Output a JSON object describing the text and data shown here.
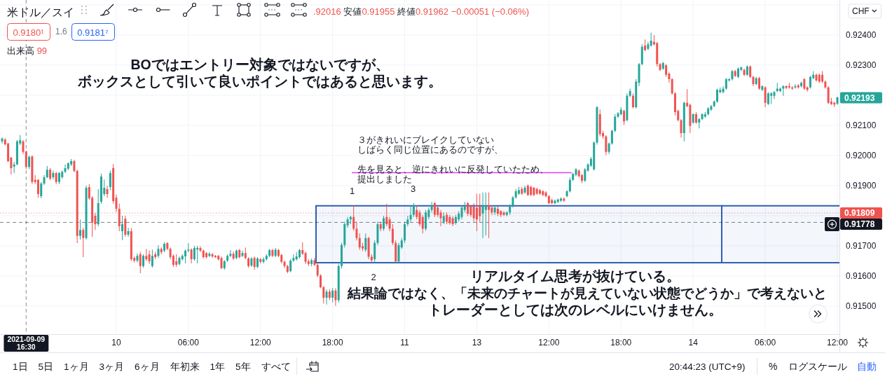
{
  "chart_data": {
    "type": "candlestick",
    "title": "米ドル／スイ",
    "subtitle": ".92016 安値0.91955 終値0.91962 −0.00051 (−0.06%)",
    "ylabel": "CHF",
    "categories": [
      null,
      null,
      null,
      null,
      null,
      null,
      null,
      null,
      "2021-09-09 16:30",
      null,
      null,
      null,
      null,
      null,
      null,
      null,
      null,
      null,
      null,
      null,
      null,
      null,
      null,
      null,
      null,
      null,
      null,
      null,
      null,
      null,
      null,
      null,
      null,
      null,
      null,
      null,
      null,
      null,
      "10",
      null,
      null,
      null,
      null,
      null,
      null,
      null,
      null,
      null,
      null,
      null,
      null,
      null,
      null,
      null,
      null,
      null,
      null,
      null,
      null,
      null,
      null,
      null,
      "06:00",
      null,
      null,
      null,
      null,
      null,
      null,
      null,
      null,
      null,
      null,
      null,
      null,
      null,
      null,
      null,
      null,
      null,
      null,
      null,
      null,
      null,
      null,
      null,
      "12:00",
      null,
      null,
      null,
      null,
      null,
      null,
      null,
      null,
      null,
      null,
      null,
      null,
      null,
      null,
      null,
      null,
      null,
      null,
      null,
      null,
      null,
      null,
      null,
      "18:00",
      null,
      null,
      null,
      null,
      null,
      null,
      null,
      null,
      null,
      null,
      null,
      null,
      null,
      null,
      null,
      null,
      null,
      null,
      null,
      null,
      null,
      null,
      null,
      "11",
      null,
      null,
      null,
      null,
      null,
      null,
      null,
      null,
      null,
      null,
      null,
      null,
      null,
      null,
      null,
      null,
      null,
      null,
      null,
      null,
      null,
      null,
      null,
      "13",
      null,
      null,
      null,
      null,
      null,
      null,
      null,
      null,
      null,
      null,
      null,
      null,
      null,
      null,
      null,
      null,
      null,
      null,
      null,
      null,
      null,
      null,
      null,
      "12:00",
      null,
      null,
      null,
      null,
      null,
      null,
      null,
      null,
      null,
      null,
      null,
      null,
      null,
      null,
      null,
      null,
      null,
      null,
      null,
      null,
      null,
      null,
      null,
      "18:00",
      null,
      null,
      null,
      null,
      null,
      null,
      null,
      null,
      null,
      null,
      null,
      null,
      null,
      null,
      null,
      null,
      null,
      null,
      null,
      null,
      null,
      null,
      null,
      "14",
      null,
      null,
      null,
      null,
      null,
      null,
      null,
      null,
      null,
      null,
      null,
      null,
      null,
      null,
      null,
      null,
      null,
      null,
      null,
      null,
      null,
      null,
      null,
      "06:00",
      null,
      null,
      null,
      null,
      null,
      null,
      null,
      null,
      null,
      null,
      null,
      null,
      null,
      null,
      null,
      null,
      null,
      null,
      null,
      null,
      null,
      null,
      null,
      "12:00"
    ],
    "ylim": [
      0.91407,
      0.92516
    ],
    "yticks": [
      {
        "value": 0.925,
        "label": null
      },
      {
        "value": 0.924,
        "label": "0.92400"
      },
      {
        "value": 0.923,
        "label": "0.92300"
      },
      {
        "value": 0.922,
        "label": null
      },
      {
        "value": 0.921,
        "label": "0.92100"
      },
      {
        "value": 0.92,
        "label": "0.92000"
      },
      {
        "value": 0.919,
        "label": "0.91900"
      },
      {
        "value": 0.918,
        "label": null
      },
      {
        "value": 0.917,
        "label": "0.91700"
      },
      {
        "value": 0.916,
        "label": "0.91600"
      },
      {
        "value": 0.915,
        "label": "0.91500"
      }
    ],
    "grid": true,
    "ohlc": [
      [
        0.92047,
        0.9206,
        0.9204,
        0.92056
      ],
      [
        0.92053,
        0.92058,
        0.92033,
        0.92037
      ],
      [
        0.9204,
        0.92042,
        0.91978,
        0.91981
      ],
      [
        0.91993,
        0.91995,
        0.91937,
        0.91958
      ],
      [
        0.91963,
        0.91979,
        0.91942,
        0.9197
      ],
      [
        0.9197,
        0.92051,
        0.91968,
        0.92047
      ],
      [
        0.9204,
        0.92068,
        0.92035,
        0.92051
      ],
      [
        0.92047,
        0.92051,
        0.92005,
        0.92012
      ],
      [
        0.92013,
        0.92016,
        0.91955,
        0.91962
      ],
      [
        0.91962,
        0.92,
        0.91955,
        0.91995
      ],
      [
        0.91997,
        0.92,
        0.91905,
        0.91912
      ],
      [
        0.91919,
        0.91935,
        0.91905,
        0.91912
      ],
      [
        0.91919,
        0.91922,
        0.9186,
        0.91872
      ],
      [
        0.91865,
        0.91912,
        0.91858,
        0.91907
      ],
      [
        0.91907,
        0.91935,
        0.91902,
        0.91928
      ],
      [
        0.91928,
        0.91965,
        0.91925,
        0.91953
      ],
      [
        0.91953,
        0.91958,
        0.91918,
        0.91923
      ],
      [
        0.91928,
        0.9195,
        0.9192,
        0.91942
      ],
      [
        0.91942,
        0.91946,
        0.91905,
        0.91912
      ],
      [
        0.91912,
        0.91946,
        0.91905,
        0.91942
      ],
      [
        0.91928,
        0.9195,
        0.91923,
        0.91946
      ],
      [
        0.91946,
        0.9197,
        0.91942,
        0.91958
      ],
      [
        0.91956,
        0.91977,
        0.91951,
        0.91974
      ],
      [
        0.9197,
        0.91988,
        0.91965,
        0.91981
      ],
      [
        0.91981,
        0.91986,
        0.91944,
        0.91949
      ],
      [
        0.91949,
        0.91953,
        0.91709,
        0.91733
      ],
      [
        0.91733,
        0.91788,
        0.91721,
        0.91753
      ],
      [
        0.91753,
        0.9176,
        0.91663,
        0.91726
      ],
      [
        0.91726,
        0.919,
        0.91721,
        0.91893
      ],
      [
        0.91895,
        0.91905,
        0.91853,
        0.91858
      ],
      [
        0.9186,
        0.91865,
        0.9173,
        0.91777
      ],
      [
        0.918,
        0.9181,
        0.91753,
        0.91772
      ],
      [
        0.91772,
        0.91888,
        0.91765,
        0.91842
      ],
      [
        0.91847,
        0.9194,
        0.9184,
        0.9193
      ],
      [
        0.91872,
        0.9192,
        0.91865,
        0.91893
      ],
      [
        0.91888,
        0.919,
        0.9186,
        0.91872
      ],
      [
        0.91895,
        0.9195,
        0.91885,
        0.91942
      ],
      [
        0.91958,
        0.91972,
        0.9184,
        0.91849
      ],
      [
        0.9186,
        0.9187,
        0.91812,
        0.91823
      ],
      [
        0.91823,
        0.9184,
        0.91749,
        0.91765
      ],
      [
        0.91749,
        0.918,
        0.91719,
        0.91772
      ],
      [
        0.9179,
        0.918,
        0.9173,
        0.91737
      ],
      [
        0.91737,
        0.9176,
        0.9173,
        0.91749
      ],
      [
        0.91749,
        0.9176,
        0.9165,
        0.91656
      ],
      [
        0.9166,
        0.91665,
        0.91645,
        0.91651
      ],
      [
        0.91651,
        0.91675,
        0.91645,
        0.91667
      ],
      [
        0.91672,
        0.9168,
        0.91609,
        0.91633
      ],
      [
        0.91633,
        0.91672,
        0.91628,
        0.91667
      ],
      [
        0.91667,
        0.9169,
        0.9165,
        0.91656
      ],
      [
        0.91672,
        0.91685,
        0.9164,
        0.91649
      ],
      [
        0.91633,
        0.91688,
        0.91628,
        0.91667
      ],
      [
        0.91672,
        0.9168,
        0.91656,
        0.91663
      ],
      [
        0.91667,
        0.91702,
        0.9166,
        0.9169
      ],
      [
        0.9169,
        0.91695,
        0.91672,
        0.91679
      ],
      [
        0.91684,
        0.91712,
        0.91679,
        0.91707
      ],
      [
        0.91709,
        0.91712,
        0.91686,
        0.9169
      ],
      [
        0.9169,
        0.91695,
        0.91656,
        0.91663
      ],
      [
        0.91667,
        0.91672,
        0.9163,
        0.91637
      ],
      [
        0.91649,
        0.91672,
        0.9163,
        0.91637
      ],
      [
        0.9164,
        0.91665,
        0.91635,
        0.9166
      ],
      [
        0.91656,
        0.91672,
        0.91651,
        0.91667
      ],
      [
        0.91665,
        0.91688,
        0.91642,
        0.91684
      ],
      [
        0.91684,
        0.91709,
        0.91679,
        0.91688
      ],
      [
        0.91688,
        0.91692,
        0.91642,
        0.91656
      ],
      [
        0.91656,
        0.917,
        0.91651,
        0.91693
      ],
      [
        0.91688,
        0.917,
        0.91642,
        0.91693
      ],
      [
        0.91693,
        0.91698,
        0.91679,
        0.91684
      ],
      [
        0.91684,
        0.91688,
        0.91658,
        0.91663
      ],
      [
        0.91676,
        0.91679,
        0.91658,
        0.91663
      ],
      [
        0.91667,
        0.91679,
        0.91663,
        0.91674
      ],
      [
        0.91672,
        0.91676,
        0.9166,
        0.91665
      ],
      [
        0.91667,
        0.9167,
        0.9166,
        0.91663
      ],
      [
        0.91667,
        0.9167,
        0.91651,
        0.91656
      ],
      [
        0.9166,
        0.91665,
        0.91623,
        0.91626
      ],
      [
        0.91626,
        0.91653,
        0.91621,
        0.91649
      ],
      [
        0.91651,
        0.91672,
        0.91647,
        0.91667
      ],
      [
        0.91667,
        0.91686,
        0.91663,
        0.91674
      ],
      [
        0.91674,
        0.91681,
        0.91653,
        0.91658
      ],
      [
        0.9166,
        0.91688,
        0.91656,
        0.91684
      ],
      [
        0.91686,
        0.9169,
        0.91658,
        0.91663
      ],
      [
        0.91667,
        0.91684,
        0.91663,
        0.91676
      ],
      [
        0.91676,
        0.91695,
        0.91656,
        0.9166
      ],
      [
        0.91658,
        0.91663,
        0.91628,
        0.91633
      ],
      [
        0.91635,
        0.91663,
        0.9163,
        0.91658
      ],
      [
        0.9166,
        0.91665,
        0.91621,
        0.9163
      ],
      [
        0.9163,
        0.91663,
        0.91626,
        0.91658
      ],
      [
        0.91656,
        0.9166,
        0.91642,
        0.91647
      ],
      [
        0.91647,
        0.91663,
        0.91642,
        0.91656
      ],
      [
        0.91656,
        0.91672,
        0.91651,
        0.91667
      ],
      [
        0.91667,
        0.9169,
        0.91663,
        0.91686
      ],
      [
        0.91686,
        0.9169,
        0.91663,
        0.91667
      ],
      [
        0.91667,
        0.91693,
        0.91663,
        0.91688
      ],
      [
        0.91686,
        0.9169,
        0.91663,
        0.91667
      ],
      [
        0.9167,
        0.91674,
        0.91642,
        0.91647
      ],
      [
        0.91647,
        0.91651,
        0.91626,
        0.91633
      ],
      [
        0.91633,
        0.91637,
        0.91609,
        0.91614
      ],
      [
        0.91616,
        0.91656,
        0.91612,
        0.91651
      ],
      [
        0.91651,
        0.91672,
        0.91647,
        0.9166
      ],
      [
        0.91656,
        0.91679,
        0.91651,
        0.91665
      ],
      [
        0.91663,
        0.9169,
        0.91658,
        0.91686
      ],
      [
        0.91686,
        0.91712,
        0.9167,
        0.91674
      ],
      [
        0.91676,
        0.91681,
        0.9164,
        0.91647
      ],
      [
        0.91649,
        0.91656,
        0.91633,
        0.9164
      ],
      [
        0.9164,
        0.91658,
        0.91632,
        0.91652
      ],
      [
        0.91652,
        0.9166,
        0.91633,
        0.91637
      ],
      [
        0.91637,
        0.91644,
        0.91596,
        0.91602
      ],
      [
        0.91602,
        0.91606,
        0.91559,
        0.91563
      ],
      [
        0.91563,
        0.91567,
        0.91509,
        0.91528
      ],
      [
        0.91528,
        0.91555,
        0.91505,
        0.91548
      ],
      [
        0.91548,
        0.91556,
        0.9152,
        0.91528
      ],
      [
        0.91528,
        0.9156,
        0.91512,
        0.91552
      ],
      [
        0.91552,
        0.91559,
        0.91501,
        0.9152
      ],
      [
        0.9152,
        0.9164,
        0.91512,
        0.91633
      ],
      [
        0.91633,
        0.9171,
        0.91625,
        0.91703
      ],
      [
        0.91703,
        0.9178,
        0.91695,
        0.91772
      ],
      [
        0.91768,
        0.91796,
        0.9176,
        0.91788
      ],
      [
        0.91788,
        0.918,
        0.91772,
        0.91796
      ],
      [
        0.91796,
        0.91834,
        0.9175,
        0.91757
      ],
      [
        0.91757,
        0.9178,
        0.91718,
        0.91726
      ],
      [
        0.91726,
        0.91741,
        0.91687,
        0.91695
      ],
      [
        0.91699,
        0.9171,
        0.91683,
        0.91691
      ],
      [
        0.91687,
        0.91741,
        0.9168,
        0.91726
      ],
      [
        0.91726,
        0.9173,
        0.91656,
        0.91664
      ],
      [
        0.91664,
        0.91672,
        0.91644,
        0.91652
      ],
      [
        0.91656,
        0.91718,
        0.91644,
        0.9171
      ],
      [
        0.9171,
        0.9178,
        0.91703,
        0.91772
      ],
      [
        0.91772,
        0.9178,
        0.91749,
        0.91757
      ],
      [
        0.91757,
        0.918,
        0.9175,
        0.91792
      ],
      [
        0.91796,
        0.9184,
        0.91765,
        0.91772
      ],
      [
        0.91788,
        0.91796,
        0.91749,
        0.91757
      ],
      [
        0.91757,
        0.91772,
        0.91703,
        0.9171
      ],
      [
        0.9171,
        0.91718,
        0.91644,
        0.91648
      ],
      [
        0.91648,
        0.9171,
        0.91644,
        0.91703
      ],
      [
        0.91695,
        0.91726,
        0.9169,
        0.91718
      ],
      [
        0.91718,
        0.9178,
        0.9171,
        0.91772
      ],
      [
        0.91772,
        0.918,
        0.91765,
        0.91788
      ],
      [
        0.91788,
        0.91834,
        0.9178,
        0.91803
      ],
      [
        0.91803,
        0.91842,
        0.91796,
        0.91834
      ],
      [
        0.91819,
        0.91834,
        0.91788,
        0.91796
      ],
      [
        0.91811,
        0.91819,
        0.91765,
        0.91772
      ],
      [
        0.91796,
        0.91803,
        0.91741,
        0.91757
      ],
      [
        0.91757,
        0.91819,
        0.9175,
        0.91811
      ],
      [
        0.91796,
        0.91827,
        0.91788,
        0.91819
      ],
      [
        0.91819,
        0.91846,
        0.91811,
        0.91834
      ],
      [
        0.91842,
        0.91846,
        0.91796,
        0.91803
      ],
      [
        0.91827,
        0.91834,
        0.91796,
        0.91803
      ],
      [
        0.91811,
        0.91819,
        0.91765,
        0.91792
      ],
      [
        0.9178,
        0.91811,
        0.91772,
        0.91799
      ],
      [
        0.91803,
        0.91811,
        0.91772,
        0.9178
      ],
      [
        0.91796,
        0.91803,
        0.9177,
        0.91776
      ],
      [
        0.91792,
        0.91799,
        0.91765,
        0.91772
      ],
      [
        0.91776,
        0.91803,
        0.9177,
        0.91796
      ],
      [
        0.91788,
        0.91815,
        0.9178,
        0.91807
      ],
      [
        0.91796,
        0.91834,
        0.91788,
        0.91827
      ],
      [
        0.91819,
        0.91846,
        0.91811,
        0.9183
      ],
      [
        0.91842,
        0.91846,
        0.91799,
        0.91807
      ],
      [
        0.9183,
        0.91834,
        0.91796,
        0.91803
      ],
      [
        0.9183,
        0.91842,
        0.9178,
        0.91792
      ],
      [
        0.91827,
        0.91873,
        0.91749,
        0.91788
      ],
      [
        0.9183,
        0.91873,
        0.9178,
        0.91799
      ],
      [
        0.91807,
        0.91877,
        0.91726,
        0.91834
      ],
      [
        0.91819,
        0.91877,
        0.91734,
        0.91834
      ],
      [
        0.91834,
        0.91877,
        0.91726,
        0.91819
      ],
      [
        0.91827,
        0.91834,
        0.91803,
        0.91811
      ],
      [
        0.91811,
        0.91834,
        0.91803,
        0.91827
      ],
      [
        0.91823,
        0.9183,
        0.91799,
        0.91807
      ],
      [
        0.91815,
        0.91819,
        0.91796,
        0.91803
      ],
      [
        0.91811,
        0.91815,
        0.91799,
        0.91803
      ],
      [
        0.91803,
        0.91815,
        0.91799,
        0.91811
      ],
      [
        0.91811,
        0.91838,
        0.91803,
        0.91834
      ],
      [
        0.91834,
        0.91865,
        0.91827,
        0.91861
      ],
      [
        0.91861,
        0.91889,
        0.91857,
        0.91881
      ],
      [
        0.91873,
        0.91896,
        0.91869,
        0.91885
      ],
      [
        0.91889,
        0.91896,
        0.91869,
        0.91873
      ],
      [
        0.91877,
        0.919,
        0.91873,
        0.91893
      ],
      [
        0.919,
        0.91904,
        0.91865,
        0.91869
      ],
      [
        0.91896,
        0.919,
        0.91865,
        0.91869
      ],
      [
        0.91893,
        0.91896,
        0.91865,
        0.91869
      ],
      [
        0.91889,
        0.91893,
        0.91869,
        0.91873
      ],
      [
        0.91885,
        0.91889,
        0.91869,
        0.91873
      ],
      [
        0.91881,
        0.91885,
        0.91865,
        0.91869
      ],
      [
        0.91877,
        0.91881,
        0.91861,
        0.91865
      ],
      [
        0.91865,
        0.91869,
        0.91838,
        0.91842
      ],
      [
        0.91852,
        0.91857,
        0.91838,
        0.91842
      ],
      [
        0.91842,
        0.91854,
        0.91838,
        0.9185
      ],
      [
        0.91846,
        0.91857,
        0.91842,
        0.91854
      ],
      [
        0.9185,
        0.91861,
        0.91846,
        0.91857
      ],
      [
        0.91857,
        0.91861,
        0.91846,
        0.9185
      ],
      [
        0.91865,
        0.91885,
        0.91861,
        0.91881
      ],
      [
        0.91881,
        0.91927,
        0.91877,
        0.91919
      ],
      [
        0.91919,
        0.91943,
        0.91915,
        0.91939
      ],
      [
        0.91936,
        0.91958,
        0.91931,
        0.91954
      ],
      [
        0.9195,
        0.91954,
        0.91927,
        0.91931
      ],
      [
        0.91935,
        0.91939,
        0.91908,
        0.91916
      ],
      [
        0.91916,
        0.91958,
        0.91912,
        0.91954
      ],
      [
        0.9195,
        0.91974,
        0.91946,
        0.9197
      ],
      [
        0.91966,
        0.91995,
        0.91962,
        0.91989
      ],
      [
        0.91954,
        0.92047,
        0.9195,
        0.92043
      ],
      [
        0.92043,
        0.92164,
        0.92036,
        0.9216
      ],
      [
        0.92137,
        0.92153,
        0.92063,
        0.92071
      ],
      [
        0.92074,
        0.92082,
        0.92055,
        0.92063
      ],
      [
        0.92063,
        0.92067,
        0.92001,
        0.92012
      ],
      [
        0.92012,
        0.92043,
        0.92005,
        0.9204
      ],
      [
        0.9204,
        0.92086,
        0.92036,
        0.92082
      ],
      [
        0.92082,
        0.92137,
        0.92078,
        0.92129
      ],
      [
        0.92129,
        0.92144,
        0.92125,
        0.9214
      ],
      [
        0.92137,
        0.9216,
        0.92133,
        0.92152
      ],
      [
        0.92148,
        0.92152,
        0.92101,
        0.92113
      ],
      [
        0.92117,
        0.92206,
        0.92113,
        0.92198
      ],
      [
        0.92198,
        0.92222,
        0.92194,
        0.92214
      ],
      [
        0.92198,
        0.92206,
        0.92156,
        0.9216
      ],
      [
        0.9216,
        0.92253,
        0.92156,
        0.92245
      ],
      [
        0.92241,
        0.92307,
        0.9223,
        0.92303
      ],
      [
        0.92303,
        0.92369,
        0.92299,
        0.92361
      ],
      [
        0.92365,
        0.92385,
        0.92346,
        0.9235
      ],
      [
        0.92354,
        0.92377,
        0.9235,
        0.92369
      ],
      [
        0.92365,
        0.92408,
        0.92361,
        0.92381
      ],
      [
        0.92377,
        0.924,
        0.92365,
        0.92369
      ],
      [
        0.92373,
        0.92377,
        0.92295,
        0.92303
      ],
      [
        0.92303,
        0.92307,
        0.9228,
        0.92284
      ],
      [
        0.92288,
        0.92311,
        0.92284,
        0.92307
      ],
      [
        0.92299,
        0.92303,
        0.92261,
        0.92268
      ],
      [
        0.92272,
        0.92276,
        0.92241,
        0.92253
      ],
      [
        0.92253,
        0.92257,
        0.92202,
        0.92206
      ],
      [
        0.92206,
        0.9221,
        0.92133,
        0.92144
      ],
      [
        0.92148,
        0.92152,
        0.92113,
        0.92117
      ],
      [
        0.92117,
        0.92121,
        0.92059,
        0.92074
      ],
      [
        0.92074,
        0.92179,
        0.92047,
        0.92175
      ],
      [
        0.92175,
        0.9222,
        0.9216,
        0.92164
      ],
      [
        0.92168,
        0.92172,
        0.92074,
        0.92098
      ],
      [
        0.92109,
        0.9214,
        0.92105,
        0.92137
      ],
      [
        0.92137,
        0.92144,
        0.92105,
        0.92109
      ],
      [
        0.92109,
        0.92125,
        0.9209,
        0.92121
      ],
      [
        0.92121,
        0.9214,
        0.92117,
        0.92137
      ],
      [
        0.92129,
        0.92144,
        0.92125,
        0.92137
      ],
      [
        0.92137,
        0.9216,
        0.92133,
        0.92156
      ],
      [
        0.92152,
        0.92168,
        0.92148,
        0.92164
      ],
      [
        0.92164,
        0.92183,
        0.9216,
        0.92179
      ],
      [
        0.92179,
        0.92222,
        0.92175,
        0.92218
      ],
      [
        0.9221,
        0.92226,
        0.92206,
        0.92218
      ],
      [
        0.9221,
        0.9223,
        0.92206,
        0.92222
      ],
      [
        0.92222,
        0.92257,
        0.92218,
        0.92253
      ],
      [
        0.92249,
        0.92257,
        0.92245,
        0.92253
      ],
      [
        0.92253,
        0.92284,
        0.92249,
        0.9228
      ],
      [
        0.9228,
        0.92284,
        0.92261,
        0.92264
      ],
      [
        0.92261,
        0.92292,
        0.92257,
        0.92288
      ],
      [
        0.92284,
        0.92295,
        0.9228,
        0.92292
      ],
      [
        0.92284,
        0.92288,
        0.92264,
        0.92268
      ],
      [
        0.92268,
        0.92299,
        0.92264,
        0.92295
      ],
      [
        0.92295,
        0.92299,
        0.92257,
        0.92261
      ],
      [
        0.92261,
        0.92264,
        0.9223,
        0.92237
      ],
      [
        0.92237,
        0.92261,
        0.92233,
        0.92257
      ],
      [
        0.92257,
        0.92261,
        0.92218,
        0.92222
      ],
      [
        0.92218,
        0.92233,
        0.92214,
        0.9223
      ],
      [
        0.92226,
        0.9223,
        0.9216,
        0.92175
      ],
      [
        0.92171,
        0.9221,
        0.92168,
        0.92206
      ],
      [
        0.92198,
        0.9221,
        0.92171,
        0.92206
      ],
      [
        0.92198,
        0.92214,
        0.92187,
        0.9221
      ],
      [
        0.92214,
        0.92241,
        0.9221,
        0.92222
      ],
      [
        0.92214,
        0.92226,
        0.9221,
        0.92222
      ],
      [
        0.92222,
        0.92233,
        0.92198,
        0.9223
      ],
      [
        0.9223,
        0.92233,
        0.9222,
        0.92224
      ],
      [
        0.9223,
        0.92241,
        0.92222,
        0.92226
      ],
      [
        0.92226,
        0.9223,
        0.92218,
        0.92222
      ],
      [
        0.92226,
        0.92237,
        0.92222,
        0.9223
      ],
      [
        0.92233,
        0.92237,
        0.92222,
        0.92226
      ],
      [
        0.9223,
        0.92245,
        0.92226,
        0.92241
      ],
      [
        0.92253,
        0.92257,
        0.92218,
        0.92222
      ],
      [
        0.92226,
        0.9223,
        0.92212,
        0.92218
      ],
      [
        0.92226,
        0.92264,
        0.92222,
        0.92261
      ],
      [
        0.92257,
        0.9228,
        0.92253,
        0.92268
      ],
      [
        0.92268,
        0.92272,
        0.92245,
        0.92249
      ],
      [
        0.92268,
        0.92272,
        0.92241,
        0.92245
      ],
      [
        0.92268,
        0.9228,
        0.92241,
        0.92245
      ],
      [
        0.92245,
        0.92249,
        0.92222,
        0.92226
      ],
      [
        0.92226,
        0.9223,
        0.92171,
        0.92175
      ],
      [
        0.92179,
        0.92191,
        0.92168,
        0.92171
      ],
      [
        0.92175,
        0.92179,
        0.9216,
        0.92169
      ],
      [
        0.92172,
        0.92195,
        0.92168,
        0.92193
      ]
    ],
    "colors": [
      "#26a69a",
      "#ef5350",
      "#ef5350",
      "#ef5350",
      "#26a69a",
      "#26a69a",
      "#26a69a",
      "#ef5350",
      "#ef5350",
      "#26a69a",
      "#ef5350",
      "#ef5350",
      "#ef5350",
      "#26a69a",
      "#26a69a",
      "#26a69a",
      "#ef5350",
      "#26a69a",
      "#ef5350",
      "#26a69a",
      "#26a69a",
      "#26a69a",
      "#26a69a",
      "#26a69a",
      "#ef5350",
      "#ef5350",
      "#26a69a",
      "#ef5350",
      "#26a69a",
      "#ef5350",
      "#ef5350",
      "#ef5350",
      "#26a69a",
      "#26a69a",
      "#26a69a",
      "#ef5350",
      "#26a69a",
      "#ef5350",
      "#ef5350",
      "#ef5350",
      "#26a69a",
      "#ef5350",
      "#26a69a",
      "#ef5350",
      "#ef5350",
      "#26a69a",
      "#ef5350",
      "#26a69a",
      "#ef5350",
      "#ef5350",
      "#26a69a",
      "#ef5350",
      "#26a69a",
      "#ef5350",
      "#26a69a",
      "#ef5350",
      "#ef5350",
      "#ef5350",
      "#ef5350",
      "#26a69a",
      "#26a69a",
      "#26a69a",
      "#26a69a",
      "#ef5350",
      "#26a69a",
      "#26a69a",
      "#ef5350",
      "#ef5350",
      "#ef5350",
      "#26a69a",
      "#ef5350",
      "#ef5350",
      "#ef5350",
      "#ef5350",
      "#26a69a",
      "#26a69a",
      "#26a69a",
      "#ef5350",
      "#26a69a",
      "#ef5350",
      "#26a69a",
      "#ef5350",
      "#ef5350",
      "#26a69a",
      "#ef5350",
      "#26a69a",
      "#ef5350",
      "#26a69a",
      "#26a69a",
      "#26a69a",
      "#ef5350",
      "#26a69a",
      "#ef5350",
      "#ef5350",
      "#ef5350",
      "#ef5350",
      "#26a69a",
      "#26a69a",
      "#26a69a",
      "#26a69a",
      "#ef5350",
      "#ef5350",
      "#ef5350",
      "#26a69a",
      "#ef5350",
      "#ef5350",
      "#ef5350",
      "#ef5350",
      "#26a69a",
      "#ef5350",
      "#26a69a",
      "#ef5350",
      "#26a69a",
      "#26a69a",
      "#26a69a",
      "#26a69a",
      "#26a69a",
      "#ef5350",
      "#ef5350",
      "#ef5350",
      "#ef5350",
      "#26a69a",
      "#ef5350",
      "#ef5350",
      "#26a69a",
      "#26a69a",
      "#ef5350",
      "#26a69a",
      "#ef5350",
      "#ef5350",
      "#ef5350",
      "#ef5350",
      "#26a69a",
      "#26a69a",
      "#26a69a",
      "#26a69a",
      "#26a69a",
      "#26a69a",
      "#ef5350",
      "#ef5350",
      "#ef5350",
      "#26a69a",
      "#26a69a",
      "#26a69a",
      "#ef5350",
      "#ef5350",
      "#ef5350",
      "#26a69a",
      "#ef5350",
      "#ef5350",
      "#ef5350",
      "#26a69a",
      "#26a69a",
      "#26a69a",
      "#26a69a",
      "#ef5350",
      "#ef5350",
      "#ef5350",
      "#ef5350",
      "#ef5350",
      "#26a69a",
      "#26a69a",
      "#ef5350",
      "#ef5350",
      "#26a69a",
      "#ef5350",
      "#ef5350",
      "#ef5350",
      "#26a69a",
      "#26a69a",
      "#26a69a",
      "#26a69a",
      "#26a69a",
      "#ef5350",
      "#26a69a",
      "#ef5350",
      "#ef5350",
      "#ef5350",
      "#ef5350",
      "#ef5350",
      "#ef5350",
      "#ef5350",
      "#ef5350",
      "#ef5350",
      "#26a69a",
      "#26a69a",
      "#26a69a",
      "#ef5350",
      "#26a69a",
      "#26a69a",
      "#26a69a",
      "#26a69a",
      "#ef5350",
      "#ef5350",
      "#26a69a",
      "#26a69a",
      "#26a69a",
      "#26a69a",
      "#26a69a",
      "#ef5350",
      "#ef5350",
      "#ef5350",
      "#26a69a",
      "#26a69a",
      "#26a69a",
      "#26a69a",
      "#26a69a",
      "#ef5350",
      "#26a69a",
      "#26a69a",
      "#ef5350",
      "#26a69a",
      "#26a69a",
      "#26a69a",
      "#ef5350",
      "#26a69a",
      "#26a69a",
      "#ef5350",
      "#ef5350",
      "#ef5350",
      "#26a69a",
      "#ef5350",
      "#ef5350",
      "#ef5350",
      "#ef5350",
      "#ef5350",
      "#ef5350",
      "#26a69a",
      "#ef5350",
      "#ef5350",
      "#26a69a",
      "#ef5350",
      "#26a69a",
      "#26a69a",
      "#26a69a",
      "#26a69a",
      "#26a69a",
      "#26a69a",
      "#26a69a",
      "#26a69a",
      "#26a69a",
      "#26a69a",
      "#26a69a",
      "#26a69a",
      "#ef5350",
      "#26a69a",
      "#26a69a",
      "#ef5350",
      "#26a69a",
      "#ef5350",
      "#ef5350",
      "#26a69a",
      "#ef5350",
      "#26a69a",
      "#ef5350",
      "#26a69a",
      "#26a69a",
      "#26a69a",
      "#26a69a",
      "#26a69a",
      "#26a69a",
      "#ef5350",
      "#ef5350",
      "#ef5350",
      "#26a69a",
      "#ef5350",
      "#26a69a",
      "#ef5350",
      "#ef5350",
      "#26a69a",
      "#26a69a",
      "#ef5350",
      "#ef5350",
      "#ef5350",
      "#ef5350",
      "#ef5350",
      "#ef5350",
      "#ef5350",
      "#26a69a"
    ],
    "bands": [
      {
        "axis": "y",
        "from": 0.91644,
        "to": 0.91833,
        "color": "#2f5fb3"
      },
      {
        "axis": "y",
        "from": 0.91644,
        "to": 0.91833,
        "color": "#2f5fb3"
      }
    ],
    "ref_lines": [
      {
        "axis": "y",
        "value": 0.91943,
        "color": "#e040fb",
        "line_style": "solid"
      },
      {
        "axis": "y",
        "value": 0.91809,
        "label": "0.91809",
        "color": "#ef5350",
        "line_style": "dotted"
      },
      {
        "axis": "y",
        "value": 0.91778,
        "label": "0.91778",
        "color": "#131722",
        "line_style": "dashed"
      },
      {
        "axis": "x",
        "value": "2021-09-09 16:30",
        "color": "#131722",
        "line_style": "dashed"
      }
    ],
    "annotations": [
      "BOではエントリー対象ではないですが、",
      "ボックスとして引いて良いポイントではあると思います。",
      "３がきれいにブレイクしていない",
      "しばらく同じ位置にあるのですが、",
      "先を見ると、逆にきれいに反発していたため、",
      "提出しました",
      "1",
      "2",
      "3",
      "リアルタイム思考が抜けている。",
      "結果論ではなく、「未来のチャートが見えていない状態でどうか」で考えないと",
      "トレーダーとしては次のレベルにいけません。",
      "0.92193",
      "0.9180¹",
      "1.6",
      "0.9181⁷",
      "出来高 99",
      "1日 5日 1ヶ月 3ヶ月 6ヶ月 年初来 1年 5年 すべて",
      "20:44:23 (UTC+9)",
      "%",
      "ログスケール",
      "自動"
    ]
  }
}
